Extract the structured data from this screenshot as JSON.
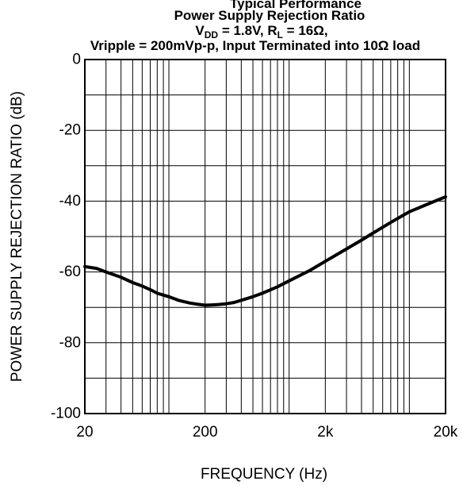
{
  "header": {
    "section_title": "Typical Performance",
    "title": "Power Supply Rejection Ratio",
    "subtitle_line1": "VDD = 1.8V, RL = 16Ω,",
    "subtitle_line1_parts": {
      "v": "V",
      "v_sub": "DD",
      "v_rest": " = 1.8V, R",
      "r_sub": "L",
      "r_rest": " = 16Ω,"
    },
    "subtitle_line2": "Vripple = 200mVp-p, Input Terminated into 10Ω load"
  },
  "chart_data": {
    "type": "line",
    "title": "Power Supply Rejection Ratio",
    "subtitle": "VDD = 1.8V, RL = 16Ω, Vripple = 200mVp-p, Input Terminated into 10Ω load",
    "xlabel": "FREQUENCY (Hz)",
    "ylabel": "POWER SUPPLY REJECTION RATIO (dB)",
    "x_scale": "log",
    "xlim": [
      20,
      20000
    ],
    "ylim": [
      -100,
      0
    ],
    "x_ticks": [
      20,
      200,
      2000,
      20000
    ],
    "x_tick_labels": [
      "20",
      "200",
      "2k",
      "20k"
    ],
    "y_ticks": [
      0,
      -20,
      -40,
      -60,
      -80,
      -100
    ],
    "y_tick_labels": [
      "0",
      "-20",
      "-40",
      "-60",
      "-80",
      "-100"
    ],
    "grid": true,
    "series": [
      {
        "color": "#000000",
        "x": [
          20,
          25,
          30,
          40,
          50,
          60,
          70,
          80,
          100,
          120,
          150,
          180,
          200,
          230,
          260,
          300,
          350,
          400,
          500,
          600,
          800,
          1000,
          1500,
          2000,
          3000,
          4000,
          5000,
          7000,
          10000,
          15000,
          20000
        ],
        "y": [
          -58.5,
          -59,
          -60,
          -61.5,
          -63,
          -64,
          -65,
          -66,
          -67,
          -68,
          -68.8,
          -69.2,
          -69.4,
          -69.3,
          -69.2,
          -69.0,
          -68.6,
          -68.0,
          -67.0,
          -66.0,
          -64.2,
          -62.5,
          -59.5,
          -57.0,
          -53.5,
          -51.0,
          -49.0,
          -46.0,
          -43.0,
          -40.5,
          -38.8
        ]
      }
    ]
  }
}
